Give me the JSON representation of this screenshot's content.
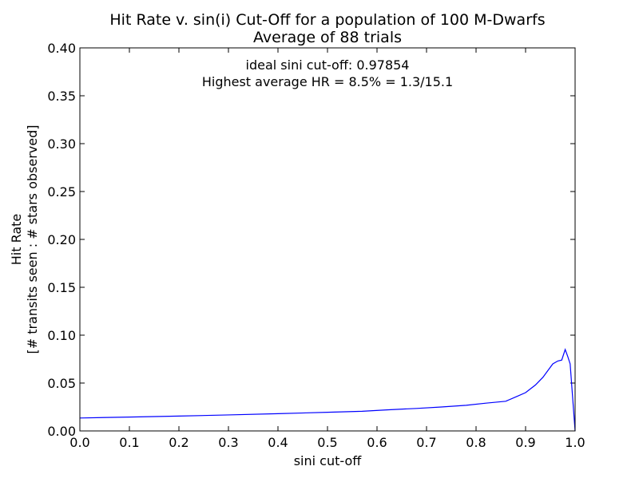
{
  "chart_data": {
    "type": "line",
    "title_line1": "Hit Rate v. sin(i) Cut-Off for a population of 100 M-Dwarfs",
    "title_line2": "Average of 88 trials",
    "xlabel": "sini cut-off",
    "ylabel_line1": "Hit Rate",
    "ylabel_line2": "[# transits seen : # stars observed]",
    "annotation_line1": "ideal sini cut-off: 0.97854",
    "annotation_line2": "Highest average HR = 8.5% = 1.3/15.1",
    "xlim": [
      0.0,
      1.0
    ],
    "ylim": [
      0.0,
      0.4
    ],
    "x_ticks": [
      "0.0",
      "0.1",
      "0.2",
      "0.3",
      "0.4",
      "0.5",
      "0.6",
      "0.7",
      "0.8",
      "0.9",
      "1.0"
    ],
    "y_ticks": [
      "0.00",
      "0.05",
      "0.10",
      "0.15",
      "0.20",
      "0.25",
      "0.30",
      "0.35",
      "0.40"
    ],
    "grid": false,
    "series": [
      {
        "color": "#0000ff",
        "x": [
          0.0,
          0.1,
          0.2,
          0.3,
          0.4,
          0.5,
          0.57,
          0.62,
          0.68,
          0.73,
          0.78,
          0.82,
          0.86,
          0.88,
          0.9,
          0.92,
          0.935,
          0.945,
          0.955,
          0.965,
          0.973,
          0.98,
          0.985,
          0.99,
          0.995,
          1.0
        ],
        "y": [
          0.0135,
          0.0145,
          0.0155,
          0.0167,
          0.018,
          0.0195,
          0.0205,
          0.022,
          0.0235,
          0.025,
          0.0268,
          0.029,
          0.031,
          0.0355,
          0.04,
          0.048,
          0.056,
          0.063,
          0.07,
          0.073,
          0.074,
          0.085,
          0.078,
          0.07,
          0.035,
          0.0
        ]
      }
    ]
  }
}
